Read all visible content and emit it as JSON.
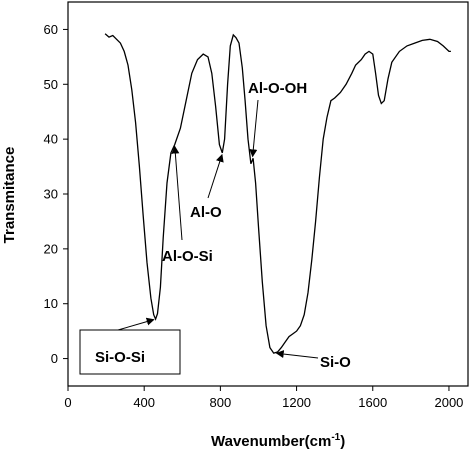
{
  "chart_data": {
    "type": "line",
    "title": "",
    "xlabel": "Wavenumber",
    "xlabel_unit": "(cm",
    "xlabel_unit_sup": "-1",
    "xlabel_unit_close": ")",
    "ylabel": "Transmitance",
    "xlim": [
      0,
      2100
    ],
    "ylim": [
      -5,
      65
    ],
    "x_ticks": [
      0,
      400,
      800,
      1200,
      1600,
      2000
    ],
    "y_ticks": [
      0,
      10,
      20,
      30,
      40,
      50,
      60
    ],
    "grid": false,
    "legend": {
      "label": "Si-O-Si",
      "placement": "bottom-left"
    },
    "series": [
      {
        "color": "#000000",
        "points": [
          [
            195,
            59.2
          ],
          [
            215,
            58.6
          ],
          [
            235,
            58.9
          ],
          [
            255,
            58.2
          ],
          [
            275,
            57.5
          ],
          [
            295,
            56.0
          ],
          [
            315,
            53.5
          ],
          [
            335,
            49.0
          ],
          [
            355,
            43.0
          ],
          [
            375,
            35.0
          ],
          [
            395,
            26.0
          ],
          [
            415,
            17.5
          ],
          [
            435,
            11.0
          ],
          [
            450,
            8.0
          ],
          [
            460,
            7.2
          ],
          [
            470,
            8.2
          ],
          [
            485,
            13.0
          ],
          [
            500,
            22.0
          ],
          [
            520,
            32.0
          ],
          [
            540,
            37.5
          ],
          [
            560,
            39.0
          ],
          [
            590,
            42.0
          ],
          [
            620,
            47.0
          ],
          [
            650,
            52.0
          ],
          [
            680,
            54.5
          ],
          [
            710,
            55.5
          ],
          [
            735,
            55.0
          ],
          [
            755,
            52.0
          ],
          [
            775,
            46.0
          ],
          [
            795,
            39.0
          ],
          [
            810,
            37.5
          ],
          [
            822,
            40.0
          ],
          [
            838,
            50.0
          ],
          [
            852,
            57.0
          ],
          [
            868,
            59.0
          ],
          [
            882,
            58.5
          ],
          [
            898,
            57.5
          ],
          [
            915,
            53.0
          ],
          [
            930,
            47.0
          ],
          [
            945,
            40.0
          ],
          [
            960,
            35.5
          ],
          [
            972,
            36.5
          ],
          [
            985,
            32.0
          ],
          [
            1000,
            24.0
          ],
          [
            1020,
            14.0
          ],
          [
            1040,
            6.0
          ],
          [
            1060,
            2.0
          ],
          [
            1080,
            1.0
          ],
          [
            1100,
            1.2
          ],
          [
            1120,
            2.0
          ],
          [
            1140,
            3.0
          ],
          [
            1160,
            4.0
          ],
          [
            1180,
            4.5
          ],
          [
            1200,
            5.0
          ],
          [
            1220,
            6.0
          ],
          [
            1240,
            8.0
          ],
          [
            1260,
            12.0
          ],
          [
            1280,
            18.0
          ],
          [
            1300,
            25.0
          ],
          [
            1320,
            33.0
          ],
          [
            1340,
            40.0
          ],
          [
            1360,
            44.0
          ],
          [
            1380,
            47.0
          ],
          [
            1400,
            47.5
          ],
          [
            1430,
            48.5
          ],
          [
            1460,
            50.0
          ],
          [
            1490,
            52.0
          ],
          [
            1510,
            53.5
          ],
          [
            1540,
            54.5
          ],
          [
            1560,
            55.5
          ],
          [
            1580,
            56.0
          ],
          [
            1600,
            55.5
          ],
          [
            1615,
            52.0
          ],
          [
            1630,
            48.0
          ],
          [
            1645,
            46.5
          ],
          [
            1660,
            47.0
          ],
          [
            1680,
            51.0
          ],
          [
            1700,
            54.0
          ],
          [
            1740,
            56.0
          ],
          [
            1780,
            57.0
          ],
          [
            1820,
            57.5
          ],
          [
            1860,
            58.0
          ],
          [
            1900,
            58.2
          ],
          [
            1940,
            57.8
          ],
          [
            1970,
            57.0
          ],
          [
            2000,
            56.0
          ],
          [
            2010,
            56.0
          ]
        ]
      }
    ],
    "annotations": [
      {
        "label": "Al-O-OH",
        "x": 968,
        "y": 36.5
      },
      {
        "label": "Al-O",
        "x": 812,
        "y": 37.5
      },
      {
        "label": "Al-O-Si",
        "x": 560,
        "y": 39
      },
      {
        "label": "Si-O",
        "x": 1085,
        "y": 1.0
      },
      {
        "label": "Si-O-Si",
        "x": 460,
        "y": 7.2
      }
    ]
  }
}
